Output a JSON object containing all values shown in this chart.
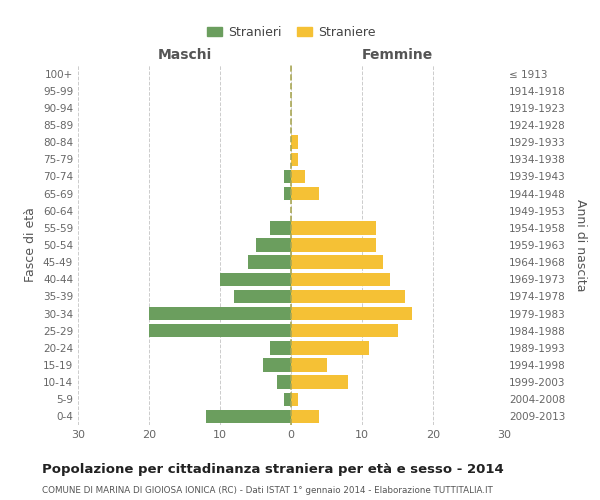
{
  "age_groups": [
    "0-4",
    "5-9",
    "10-14",
    "15-19",
    "20-24",
    "25-29",
    "30-34",
    "35-39",
    "40-44",
    "45-49",
    "50-54",
    "55-59",
    "60-64",
    "65-69",
    "70-74",
    "75-79",
    "80-84",
    "85-89",
    "90-94",
    "95-99",
    "100+"
  ],
  "birth_years": [
    "2009-2013",
    "2004-2008",
    "1999-2003",
    "1994-1998",
    "1989-1993",
    "1984-1988",
    "1979-1983",
    "1974-1978",
    "1969-1973",
    "1964-1968",
    "1959-1963",
    "1954-1958",
    "1949-1953",
    "1944-1948",
    "1939-1943",
    "1934-1938",
    "1929-1933",
    "1924-1928",
    "1919-1923",
    "1914-1918",
    "≤ 1913"
  ],
  "males": [
    12,
    1,
    2,
    4,
    3,
    20,
    20,
    8,
    10,
    6,
    5,
    3,
    0,
    1,
    1,
    0,
    0,
    0,
    0,
    0,
    0
  ],
  "females": [
    4,
    1,
    8,
    5,
    11,
    15,
    17,
    16,
    14,
    13,
    12,
    12,
    0,
    4,
    2,
    1,
    1,
    0,
    0,
    0,
    0
  ],
  "male_color": "#6b9e5e",
  "female_color": "#f5c135",
  "male_label": "Stranieri",
  "female_label": "Straniere",
  "title": "Popolazione per cittadinanza straniera per età e sesso - 2014",
  "subtitle": "COMUNE DI MARINA DI GIOIOSA IONICA (RC) - Dati ISTAT 1° gennaio 2014 - Elaborazione TUTTITALIA.IT",
  "ylabel_left": "Fasce di età",
  "ylabel_right": "Anni di nascita",
  "xlabel_left": "Maschi",
  "xlabel_right": "Femmine",
  "xlim": 30,
  "background_color": "#ffffff",
  "grid_color": "#cccccc"
}
